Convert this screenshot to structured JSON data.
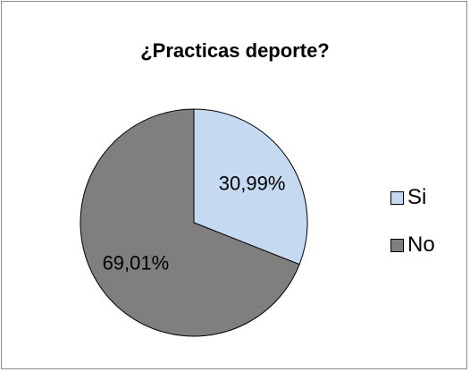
{
  "chart_data": {
    "type": "pie",
    "title": "¿Practicas deporte?",
    "categories": [
      "Si",
      "No"
    ],
    "values": [
      30.99,
      69.01
    ],
    "data_labels": [
      "30,99%",
      "69,01%"
    ],
    "colors": [
      "#c5d9f1",
      "#7f7f7f"
    ],
    "legend": "right"
  }
}
